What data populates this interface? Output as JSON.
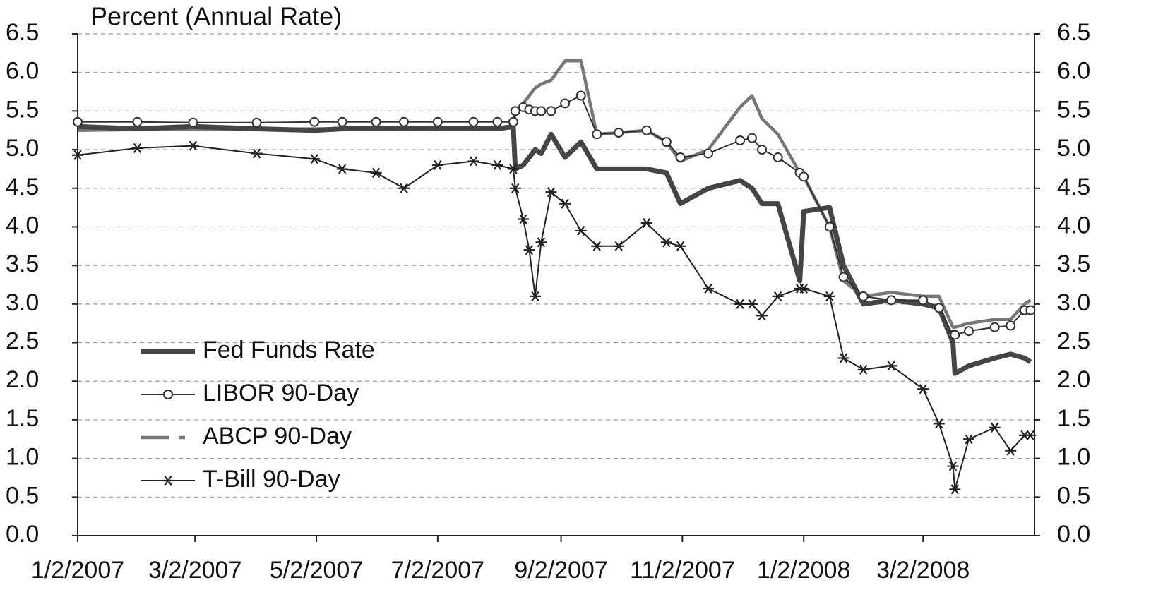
{
  "chart_data": {
    "type": "line",
    "title": "Percent (Annual Rate)",
    "x": [
      "1/2/2007",
      "2/1/2007",
      "3/1/2007",
      "4/2/2007",
      "5/1/2007",
      "5/15/2007",
      "6/1/2007",
      "6/15/2007",
      "7/2/2007",
      "7/20/2007",
      "8/1/2007",
      "8/9/2007",
      "8/10/2007",
      "8/14/2007",
      "8/17/2007",
      "8/20/2007",
      "8/23/2007",
      "8/28/2007",
      "9/4/2007",
      "9/12/2007",
      "9/20/2007",
      "10/1/2007",
      "10/15/2007",
      "10/25/2007",
      "11/1/2007",
      "11/15/2007",
      "12/1/2007",
      "12/7/2007",
      "12/12/2007",
      "12/20/2007",
      "12/31/2007",
      "1/2/2008",
      "1/15/2008",
      "1/22/2008",
      "2/1/2008",
      "2/15/2008",
      "3/2/2008",
      "3/10/2008",
      "3/17/2008",
      "3/18/2008",
      "3/25/2008",
      "4/7/2008",
      "4/15/2008",
      "4/22/2008",
      "4/25/2008"
    ],
    "series": [
      {
        "name": "Fed Funds Rate",
        "color": "#454545",
        "style": "thick",
        "marker": null,
        "values": [
          5.3,
          5.27,
          5.3,
          5.27,
          5.25,
          5.27,
          5.27,
          5.27,
          5.27,
          5.27,
          5.27,
          5.3,
          4.75,
          4.8,
          4.9,
          5.0,
          4.95,
          5.2,
          4.9,
          5.1,
          4.75,
          4.75,
          4.75,
          4.7,
          4.3,
          4.5,
          4.6,
          4.5,
          4.3,
          4.3,
          3.3,
          4.2,
          4.25,
          3.5,
          3.0,
          3.05,
          3.0,
          2.95,
          2.5,
          2.1,
          2.2,
          2.3,
          2.35,
          2.3,
          2.25
        ]
      },
      {
        "name": "LIBOR 90-Day",
        "color": "#333333",
        "style": "thin",
        "marker": "circle",
        "values": [
          5.36,
          5.36,
          5.35,
          5.35,
          5.36,
          5.36,
          5.36,
          5.36,
          5.36,
          5.36,
          5.36,
          5.36,
          5.5,
          5.55,
          5.52,
          5.5,
          5.5,
          5.5,
          5.6,
          5.7,
          5.2,
          5.22,
          5.25,
          5.1,
          4.9,
          4.95,
          5.12,
          5.15,
          5.0,
          4.9,
          4.7,
          4.65,
          4.0,
          3.35,
          3.1,
          3.05,
          3.05,
          2.95,
          2.6,
          2.6,
          2.65,
          2.7,
          2.72,
          2.92,
          2.92
        ]
      },
      {
        "name": "ABCP 90-Day",
        "color": "#777777",
        "style": "dash",
        "marker": null,
        "values": [
          5.25,
          5.26,
          5.26,
          5.26,
          5.27,
          5.27,
          5.28,
          5.27,
          5.28,
          5.28,
          5.28,
          5.28,
          5.5,
          5.6,
          5.7,
          5.8,
          5.85,
          5.9,
          6.15,
          6.15,
          5.2,
          5.22,
          5.25,
          5.1,
          4.85,
          5.0,
          5.55,
          5.7,
          5.4,
          5.2,
          4.7,
          4.65,
          4.0,
          3.3,
          3.1,
          3.15,
          3.1,
          3.1,
          2.7,
          2.7,
          2.75,
          2.8,
          2.8,
          3.0,
          3.05
        ]
      },
      {
        "name": "T-Bill 90-Day",
        "color": "#222222",
        "style": "thin",
        "marker": "star",
        "values": [
          4.93,
          5.02,
          5.05,
          4.95,
          4.88,
          4.75,
          4.7,
          4.5,
          4.8,
          4.85,
          4.8,
          4.75,
          4.5,
          4.1,
          3.7,
          3.1,
          3.8,
          4.45,
          4.3,
          3.95,
          3.75,
          3.75,
          4.05,
          3.8,
          3.75,
          3.2,
          3.0,
          3.0,
          2.85,
          3.1,
          3.2,
          3.2,
          3.1,
          2.3,
          2.15,
          2.2,
          1.9,
          1.45,
          0.9,
          0.6,
          1.25,
          1.4,
          1.1,
          1.3,
          1.3
        ]
      }
    ],
    "xlim": [
      "1/2/2007",
      "4/27/2008"
    ],
    "xticks": [
      "1/2/2007",
      "3/2/2007",
      "5/2/2007",
      "7/2/2007",
      "9/2/2007",
      "11/2/2007",
      "1/2/2008",
      "3/2/2008"
    ],
    "ylim": [
      0,
      6.5
    ],
    "yticks": [
      {
        "value": 0,
        "label": "0.0"
      },
      0.5,
      {
        "value": 1,
        "label": "1.0"
      },
      1.5,
      {
        "value": 2,
        "label": "2.0"
      },
      2.5,
      {
        "value": 3,
        "label": "3.0"
      },
      3.5,
      {
        "value": 4,
        "label": "4.0"
      },
      4.5,
      {
        "value": 5,
        "label": "5.0"
      },
      5.5,
      {
        "value": 6,
        "label": "6.0"
      },
      6.5
    ],
    "grid": true,
    "legend": "lower-left"
  }
}
